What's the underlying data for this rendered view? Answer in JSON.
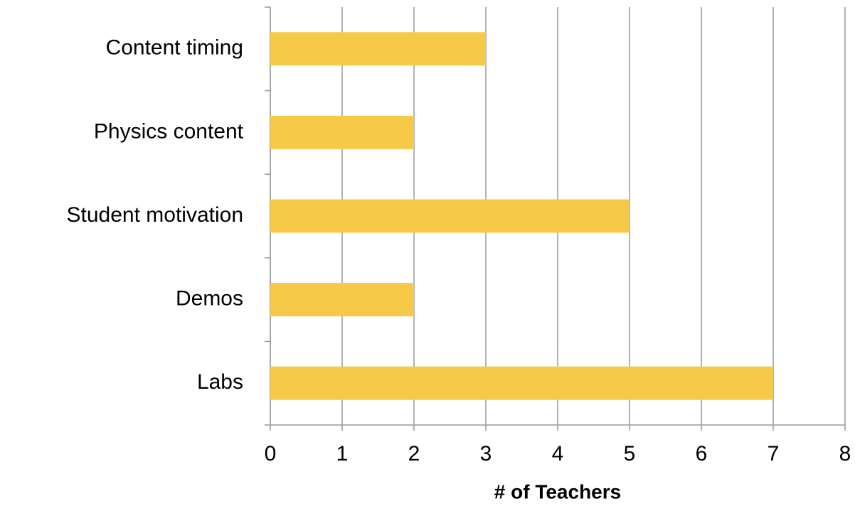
{
  "chart_data": {
    "type": "bar",
    "orientation": "horizontal",
    "categories": [
      "Content timing",
      "Physics content",
      "Student motivation",
      "Demos",
      "Labs"
    ],
    "values": [
      3,
      2,
      5,
      2,
      7
    ],
    "color": "#f7c948",
    "x_label": "# of Teachers",
    "xlim": [
      0,
      8
    ],
    "xticks": [
      0,
      1,
      2,
      3,
      4,
      5,
      6,
      7,
      8
    ],
    "grid": true
  }
}
